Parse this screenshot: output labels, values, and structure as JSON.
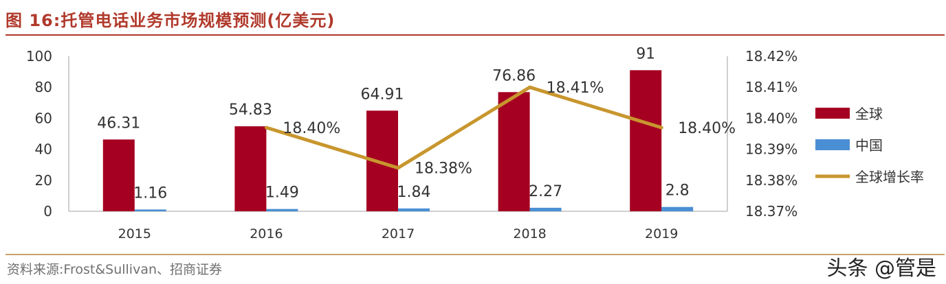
{
  "header": {
    "title": "图 16:托管电话业务市场规模预测(亿美元)"
  },
  "footer": {
    "source": "资料来源:Frost&Sullivan、招商证券",
    "watermark": "头条 @管是"
  },
  "colors": {
    "title": "#b0392b",
    "global": "#a50021",
    "china": "#4a8fd4",
    "growth": "#c8962e"
  },
  "chart_data": {
    "type": "bar",
    "categories": [
      "2015",
      "2016",
      "2017",
      "2018",
      "2019"
    ],
    "series": [
      {
        "name": "全球",
        "kind": "bar",
        "axis": "left",
        "values": [
          46.31,
          54.83,
          64.91,
          76.86,
          91
        ],
        "labels": [
          "46.31",
          "54.83",
          "64.91",
          "76.86",
          "91"
        ]
      },
      {
        "name": "中国",
        "kind": "bar",
        "axis": "left",
        "values": [
          1.16,
          1.49,
          1.84,
          2.27,
          2.8
        ],
        "labels": [
          "1.16",
          "1.49",
          "1.84",
          "2.27",
          "2.8"
        ]
      },
      {
        "name": "全球增长率",
        "kind": "line",
        "axis": "right",
        "x": [
          "2016",
          "2017",
          "2018",
          "2019"
        ],
        "values": [
          18.397,
          18.384,
          18.41,
          18.397
        ],
        "labels": [
          "18.40%",
          "18.38%",
          "18.41%",
          "18.40%"
        ]
      }
    ],
    "left_axis": {
      "ylim": [
        0,
        100
      ],
      "ticks": [
        "0",
        "20",
        "40",
        "60",
        "80",
        "100"
      ]
    },
    "right_axis": {
      "ylim": [
        18.37,
        18.42
      ],
      "ticks": [
        "18.37%",
        "18.38%",
        "18.39%",
        "18.40%",
        "18.41%",
        "18.42%"
      ]
    },
    "legend": {
      "position": "right",
      "entries": [
        "全球",
        "中国",
        "全球增长率"
      ]
    },
    "grid": false
  }
}
